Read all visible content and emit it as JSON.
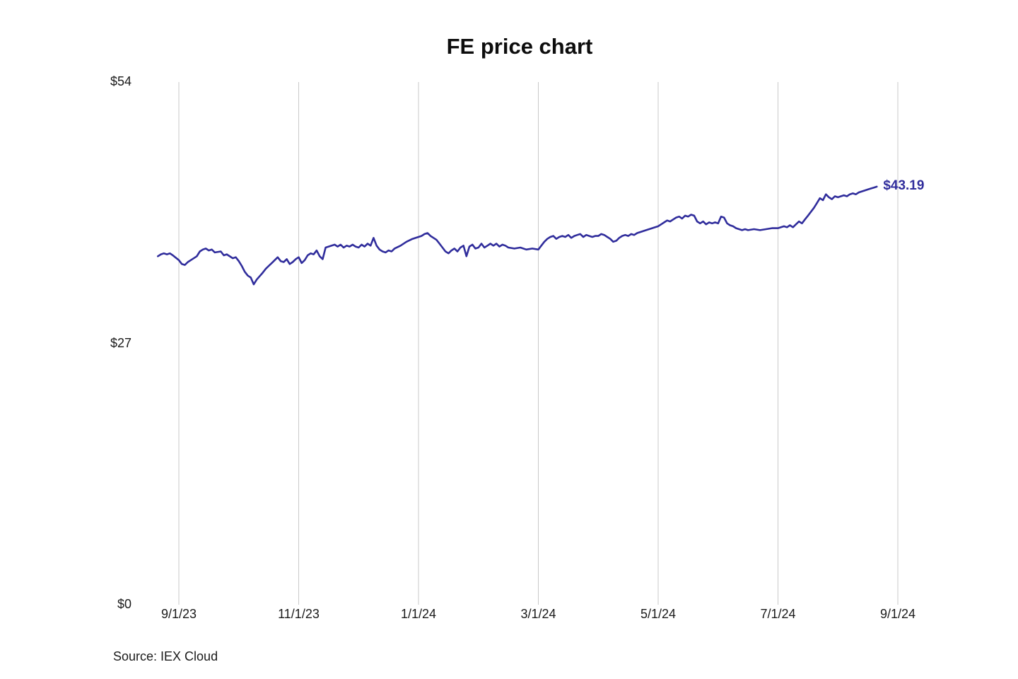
{
  "title": "FE price chart",
  "source": "Source: IEX Cloud",
  "last_price_label": "$43.19",
  "colors": {
    "line": "#302d9c",
    "grid": "#c9c9c9",
    "text": "#1a1a1a",
    "background": "#ffffff",
    "annotation": "#302d9c"
  },
  "chart_data": {
    "type": "line",
    "title": "FE price chart",
    "xlabel": "",
    "ylabel": "",
    "ylim": [
      0,
      54
    ],
    "grid": "vertical",
    "legend": "none",
    "x_unit": "months since 9/1/23",
    "yticks": [
      {
        "v": 54,
        "label": "$54"
      },
      {
        "v": 27,
        "label": "$27"
      },
      {
        "v": 0,
        "label": "$0"
      }
    ],
    "xticks": [
      {
        "m": 0,
        "label": "9/1/23"
      },
      {
        "m": 2,
        "label": "11/1/23"
      },
      {
        "m": 4,
        "label": "1/1/24"
      },
      {
        "m": 6,
        "label": "3/1/24"
      },
      {
        "m": 8,
        "label": "5/1/24"
      },
      {
        "m": 10,
        "label": "7/1/24"
      },
      {
        "m": 12,
        "label": "9/1/24"
      }
    ],
    "annotation": {
      "text": "$43.19",
      "at_last_point": true
    },
    "series": [
      {
        "name": "FE",
        "points": [
          [
            -0.35,
            36.0
          ],
          [
            -0.3,
            36.2
          ],
          [
            -0.25,
            36.3
          ],
          [
            -0.2,
            36.2
          ],
          [
            -0.15,
            36.3
          ],
          [
            -0.1,
            36.1
          ],
          [
            0.0,
            35.6
          ],
          [
            0.05,
            35.2
          ],
          [
            0.1,
            35.1
          ],
          [
            0.15,
            35.4
          ],
          [
            0.2,
            35.6
          ],
          [
            0.3,
            36.0
          ],
          [
            0.35,
            36.5
          ],
          [
            0.4,
            36.7
          ],
          [
            0.45,
            36.8
          ],
          [
            0.5,
            36.6
          ],
          [
            0.55,
            36.7
          ],
          [
            0.6,
            36.4
          ],
          [
            0.7,
            36.5
          ],
          [
            0.75,
            36.1
          ],
          [
            0.8,
            36.2
          ],
          [
            0.9,
            35.8
          ],
          [
            0.95,
            35.9
          ],
          [
            1.0,
            35.5
          ],
          [
            1.05,
            35.0
          ],
          [
            1.1,
            34.4
          ],
          [
            1.15,
            34.0
          ],
          [
            1.2,
            33.8
          ],
          [
            1.25,
            33.1
          ],
          [
            1.3,
            33.6
          ],
          [
            1.4,
            34.3
          ],
          [
            1.45,
            34.7
          ],
          [
            1.5,
            35.0
          ],
          [
            1.55,
            35.3
          ],
          [
            1.6,
            35.6
          ],
          [
            1.65,
            35.9
          ],
          [
            1.7,
            35.5
          ],
          [
            1.75,
            35.4
          ],
          [
            1.8,
            35.7
          ],
          [
            1.85,
            35.2
          ],
          [
            1.9,
            35.4
          ],
          [
            1.95,
            35.7
          ],
          [
            2.0,
            35.9
          ],
          [
            2.05,
            35.3
          ],
          [
            2.1,
            35.6
          ],
          [
            2.15,
            36.1
          ],
          [
            2.2,
            36.3
          ],
          [
            2.25,
            36.2
          ],
          [
            2.3,
            36.6
          ],
          [
            2.35,
            36.0
          ],
          [
            2.4,
            35.7
          ],
          [
            2.45,
            36.9
          ],
          [
            2.5,
            37.0
          ],
          [
            2.55,
            37.1
          ],
          [
            2.6,
            37.2
          ],
          [
            2.65,
            37.0
          ],
          [
            2.7,
            37.2
          ],
          [
            2.75,
            36.9
          ],
          [
            2.8,
            37.1
          ],
          [
            2.85,
            37.0
          ],
          [
            2.9,
            37.2
          ],
          [
            2.95,
            37.0
          ],
          [
            3.0,
            36.9
          ],
          [
            3.05,
            37.2
          ],
          [
            3.1,
            37.0
          ],
          [
            3.15,
            37.3
          ],
          [
            3.2,
            37.1
          ],
          [
            3.25,
            37.9
          ],
          [
            3.3,
            37.1
          ],
          [
            3.35,
            36.7
          ],
          [
            3.4,
            36.5
          ],
          [
            3.45,
            36.4
          ],
          [
            3.5,
            36.6
          ],
          [
            3.55,
            36.5
          ],
          [
            3.6,
            36.8
          ],
          [
            3.7,
            37.1
          ],
          [
            3.8,
            37.5
          ],
          [
            3.9,
            37.8
          ],
          [
            4.0,
            38.0
          ],
          [
            4.05,
            38.1
          ],
          [
            4.1,
            38.3
          ],
          [
            4.15,
            38.4
          ],
          [
            4.2,
            38.1
          ],
          [
            4.25,
            37.9
          ],
          [
            4.3,
            37.7
          ],
          [
            4.35,
            37.3
          ],
          [
            4.4,
            36.9
          ],
          [
            4.45,
            36.5
          ],
          [
            4.5,
            36.3
          ],
          [
            4.55,
            36.6
          ],
          [
            4.6,
            36.8
          ],
          [
            4.65,
            36.5
          ],
          [
            4.7,
            36.9
          ],
          [
            4.75,
            37.1
          ],
          [
            4.8,
            36.0
          ],
          [
            4.85,
            37.0
          ],
          [
            4.9,
            37.2
          ],
          [
            4.95,
            36.8
          ],
          [
            5.0,
            36.9
          ],
          [
            5.05,
            37.3
          ],
          [
            5.1,
            36.9
          ],
          [
            5.15,
            37.1
          ],
          [
            5.2,
            37.3
          ],
          [
            5.25,
            37.1
          ],
          [
            5.3,
            37.3
          ],
          [
            5.35,
            37.0
          ],
          [
            5.4,
            37.2
          ],
          [
            5.45,
            37.1
          ],
          [
            5.5,
            36.9
          ],
          [
            5.6,
            36.8
          ],
          [
            5.7,
            36.9
          ],
          [
            5.8,
            36.7
          ],
          [
            5.9,
            36.8
          ],
          [
            6.0,
            36.7
          ],
          [
            6.05,
            37.1
          ],
          [
            6.1,
            37.5
          ],
          [
            6.15,
            37.8
          ],
          [
            6.2,
            38.0
          ],
          [
            6.25,
            38.1
          ],
          [
            6.3,
            37.8
          ],
          [
            6.35,
            38.0
          ],
          [
            6.4,
            38.1
          ],
          [
            6.45,
            38.0
          ],
          [
            6.5,
            38.2
          ],
          [
            6.55,
            37.9
          ],
          [
            6.6,
            38.1
          ],
          [
            6.65,
            38.2
          ],
          [
            6.7,
            38.3
          ],
          [
            6.75,
            38.0
          ],
          [
            6.8,
            38.2
          ],
          [
            6.85,
            38.1
          ],
          [
            6.9,
            38.0
          ],
          [
            6.95,
            38.1
          ],
          [
            7.0,
            38.1
          ],
          [
            7.05,
            38.3
          ],
          [
            7.1,
            38.2
          ],
          [
            7.15,
            38.0
          ],
          [
            7.2,
            37.8
          ],
          [
            7.25,
            37.5
          ],
          [
            7.3,
            37.6
          ],
          [
            7.35,
            37.9
          ],
          [
            7.4,
            38.1
          ],
          [
            7.45,
            38.2
          ],
          [
            7.5,
            38.1
          ],
          [
            7.55,
            38.3
          ],
          [
            7.6,
            38.2
          ],
          [
            7.65,
            38.4
          ],
          [
            7.7,
            38.5
          ],
          [
            7.75,
            38.6
          ],
          [
            7.8,
            38.7
          ],
          [
            7.9,
            38.9
          ],
          [
            8.0,
            39.1
          ],
          [
            8.05,
            39.3
          ],
          [
            8.1,
            39.5
          ],
          [
            8.15,
            39.7
          ],
          [
            8.2,
            39.6
          ],
          [
            8.25,
            39.8
          ],
          [
            8.3,
            40.0
          ],
          [
            8.35,
            40.1
          ],
          [
            8.4,
            39.9
          ],
          [
            8.45,
            40.2
          ],
          [
            8.5,
            40.1
          ],
          [
            8.55,
            40.3
          ],
          [
            8.6,
            40.2
          ],
          [
            8.65,
            39.6
          ],
          [
            8.7,
            39.4
          ],
          [
            8.75,
            39.6
          ],
          [
            8.8,
            39.3
          ],
          [
            8.85,
            39.5
          ],
          [
            8.9,
            39.4
          ],
          [
            8.95,
            39.5
          ],
          [
            9.0,
            39.4
          ],
          [
            9.05,
            40.1
          ],
          [
            9.1,
            40.0
          ],
          [
            9.15,
            39.4
          ],
          [
            9.2,
            39.2
          ],
          [
            9.25,
            39.1
          ],
          [
            9.3,
            38.9
          ],
          [
            9.35,
            38.8
          ],
          [
            9.4,
            38.7
          ],
          [
            9.45,
            38.8
          ],
          [
            9.5,
            38.7
          ],
          [
            9.6,
            38.8
          ],
          [
            9.7,
            38.7
          ],
          [
            9.8,
            38.8
          ],
          [
            9.9,
            38.9
          ],
          [
            10.0,
            38.9
          ],
          [
            10.05,
            39.0
          ],
          [
            10.1,
            39.1
          ],
          [
            10.15,
            39.0
          ],
          [
            10.2,
            39.2
          ],
          [
            10.25,
            39.0
          ],
          [
            10.3,
            39.3
          ],
          [
            10.35,
            39.6
          ],
          [
            10.4,
            39.4
          ],
          [
            10.45,
            39.8
          ],
          [
            10.5,
            40.2
          ],
          [
            10.55,
            40.6
          ],
          [
            10.6,
            41.0
          ],
          [
            10.65,
            41.5
          ],
          [
            10.7,
            42.0
          ],
          [
            10.75,
            41.8
          ],
          [
            10.8,
            42.4
          ],
          [
            10.85,
            42.1
          ],
          [
            10.9,
            41.9
          ],
          [
            10.95,
            42.2
          ],
          [
            11.0,
            42.1
          ],
          [
            11.05,
            42.2
          ],
          [
            11.1,
            42.3
          ],
          [
            11.15,
            42.2
          ],
          [
            11.2,
            42.4
          ],
          [
            11.25,
            42.5
          ],
          [
            11.3,
            42.4
          ],
          [
            11.35,
            42.6
          ],
          [
            11.4,
            42.7
          ],
          [
            11.45,
            42.8
          ],
          [
            11.5,
            42.9
          ],
          [
            11.55,
            43.0
          ],
          [
            11.6,
            43.1
          ],
          [
            11.65,
            43.19
          ]
        ]
      }
    ]
  }
}
